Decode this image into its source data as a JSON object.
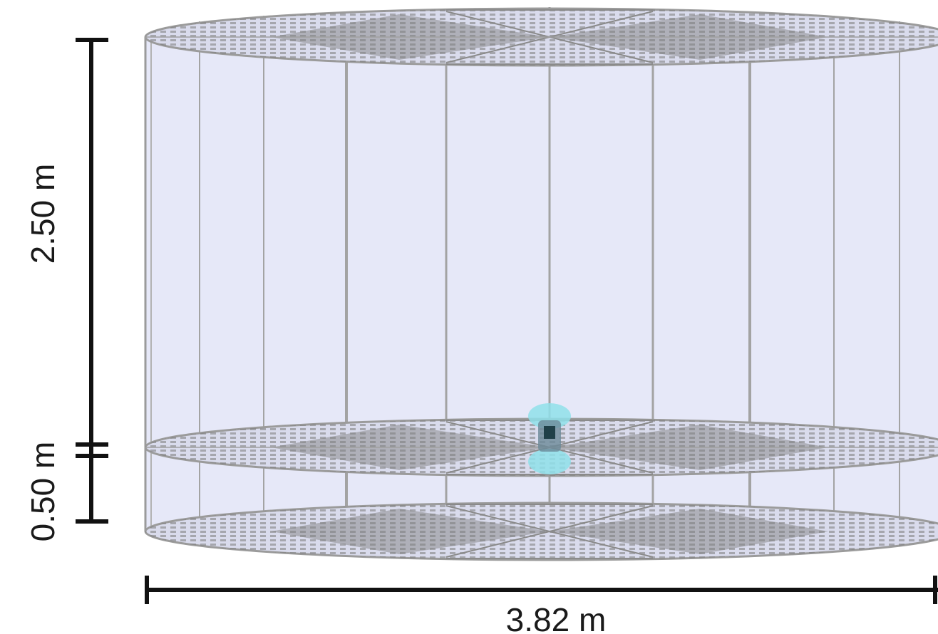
{
  "dimensions": {
    "height_upper": "2.50 m",
    "height_lower": "0.50 m",
    "width": "3.82 m"
  },
  "colors": {
    "cylinder_fill": "#e4e6f7",
    "wire": "#9b9b9b",
    "wire_dark": "#6f6f6f",
    "sensor": "#7fdde8",
    "dimension_line": "#111111"
  }
}
